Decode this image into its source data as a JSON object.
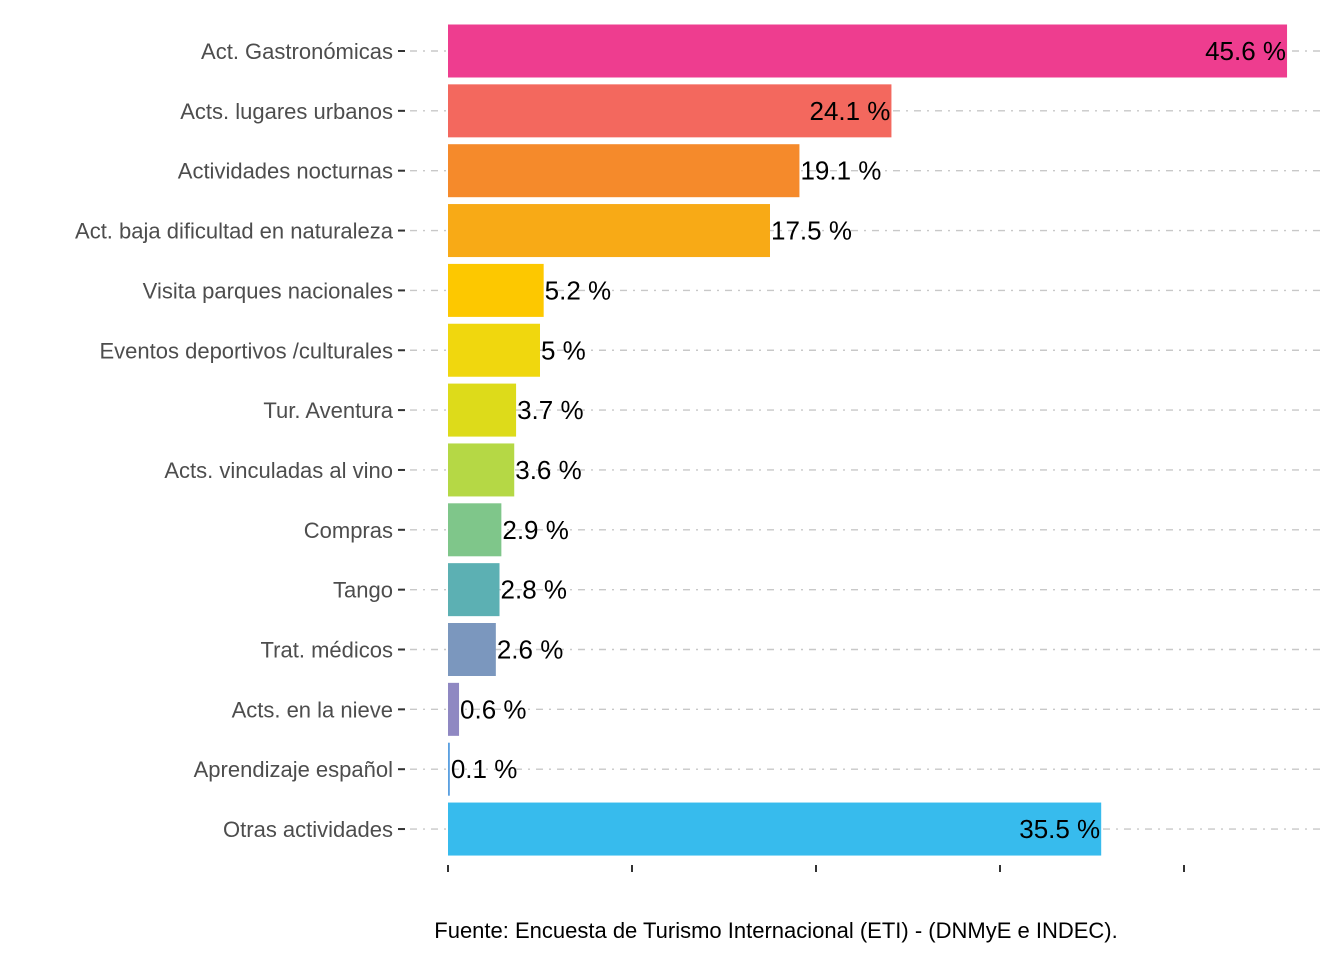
{
  "chart_data": {
    "type": "bar",
    "orientation": "horizontal",
    "categories": [
      "Act. Gastronómicas",
      "Acts. lugares urbanos",
      "Actividades nocturnas",
      "Act. baja dificultad en naturaleza",
      "Visita parques nacionales",
      "Eventos deportivos /culturales",
      "Tur. Aventura",
      "Acts. vinculadas al vino",
      "Compras",
      "Tango",
      "Trat. médicos",
      "Acts. en la nieve",
      "Aprendizaje español",
      "Otras actividades"
    ],
    "values": [
      45.6,
      24.1,
      19.1,
      17.5,
      5.2,
      5,
      3.7,
      3.6,
      2.9,
      2.8,
      2.6,
      0.6,
      0.1,
      35.5
    ],
    "value_labels": [
      "45.6 %",
      "24.1 %",
      "19.1 %",
      "17.5 %",
      "5.2 %",
      "5 %",
      "3.7 %",
      "3.6 %",
      "2.9 %",
      "2.8 %",
      "2.6 %",
      "0.6 %",
      "0.1 %",
      "35.5 %"
    ],
    "colors": [
      "#EE3D8F",
      "#F3685E",
      "#F58A2B",
      "#F8AA16",
      "#FDC800",
      "#F0D70E",
      "#DDDB1A",
      "#B5D845",
      "#7FC68A",
      "#5CB0B3",
      "#7B97BE",
      "#8F88C2",
      "#5BA0E0",
      "#37BBED"
    ],
    "xlim": [
      0,
      50
    ],
    "x_ticks": [
      0,
      10,
      20,
      30,
      40
    ],
    "grid": true,
    "legend": "none"
  },
  "caption": "Fuente: Encuesta de Turismo Internacional (ETI) - (DNMyE e INDEC)."
}
